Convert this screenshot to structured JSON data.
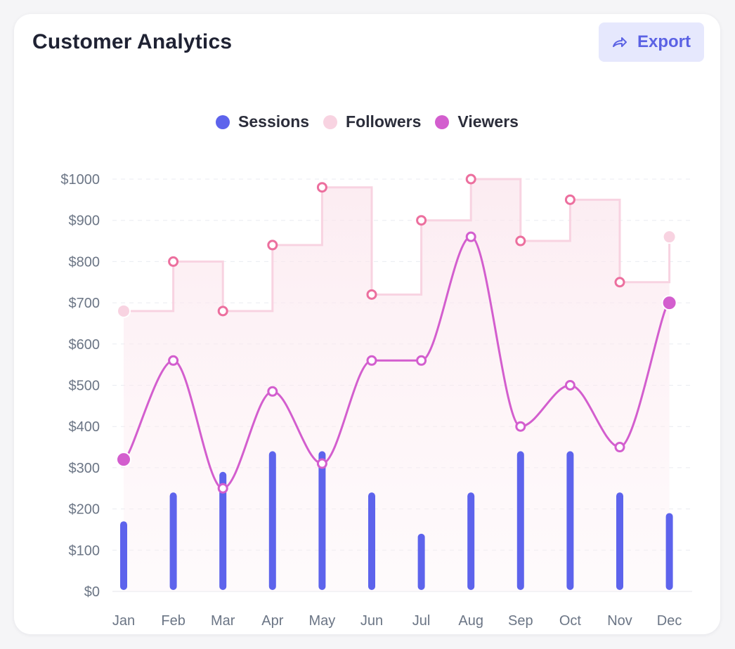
{
  "card": {
    "title": "Customer Analytics",
    "export_label": "Export"
  },
  "colors": {
    "sessions": "#5d63ec",
    "followers": "#f8d3e1",
    "followers_marker": "#ec6f9e",
    "viewers": "#d35ece",
    "export_bg": "#e6e8fd",
    "export_text": "#5b62e4"
  },
  "chart_data": {
    "type": "bar",
    "categories": [
      "Jan",
      "Feb",
      "Mar",
      "Apr",
      "May",
      "Jun",
      "Jul",
      "Aug",
      "Sep",
      "Oct",
      "Nov",
      "Dec"
    ],
    "ylim": [
      0,
      1000
    ],
    "y_ticks": [
      0,
      100,
      200,
      300,
      400,
      500,
      600,
      700,
      800,
      900,
      1000
    ],
    "y_tick_format": "$",
    "grid": true,
    "legend_position": "top-center",
    "series": [
      {
        "name": "Sessions",
        "type": "bar",
        "values": [
          170,
          240,
          290,
          340,
          340,
          240,
          140,
          240,
          340,
          340,
          240,
          190
        ]
      },
      {
        "name": "Followers",
        "type": "step-area",
        "values": [
          680,
          800,
          680,
          840,
          980,
          720,
          900,
          1000,
          850,
          950,
          750,
          860
        ]
      },
      {
        "name": "Viewers",
        "type": "smooth-line",
        "values": [
          320,
          560,
          250,
          485,
          310,
          560,
          560,
          860,
          400,
          500,
          350,
          700
        ]
      }
    ]
  }
}
